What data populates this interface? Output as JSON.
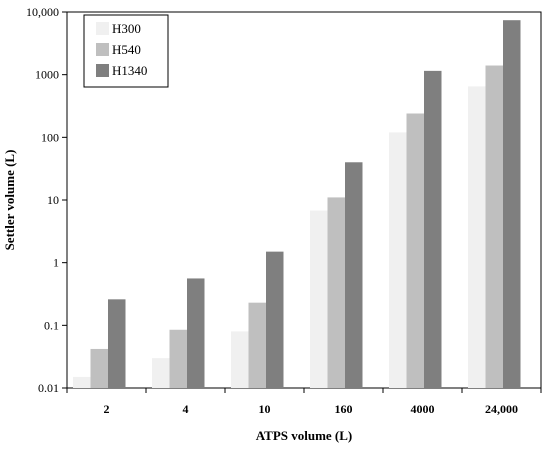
{
  "chart_data": {
    "type": "bar",
    "title": "",
    "xlabel": "ATPS volume (L)",
    "ylabel": "Settler volume (L)",
    "y_scale": "log",
    "ylim": [
      0.01,
      10000
    ],
    "y_ticks": [
      "0.01",
      "0.1",
      "1",
      "10",
      "100",
      "1000",
      "10,000"
    ],
    "y_tick_values": [
      0.01,
      0.1,
      1,
      10,
      100,
      1000,
      10000
    ],
    "categories": [
      "2",
      "4",
      "10",
      "160",
      "4000",
      "24,000"
    ],
    "series": [
      {
        "name": "H300",
        "color": "#f0f0f0",
        "values": [
          0.015,
          0.03,
          0.08,
          6.8,
          120,
          650
        ]
      },
      {
        "name": "H540",
        "color": "#bfbfbf",
        "values": [
          0.042,
          0.085,
          0.23,
          11,
          240,
          1400
        ]
      },
      {
        "name": "H1340",
        "color": "#7f7f7f",
        "values": [
          0.26,
          0.56,
          1.5,
          40,
          1150,
          7400
        ]
      }
    ],
    "legend_position": "top-left",
    "grid": false
  }
}
